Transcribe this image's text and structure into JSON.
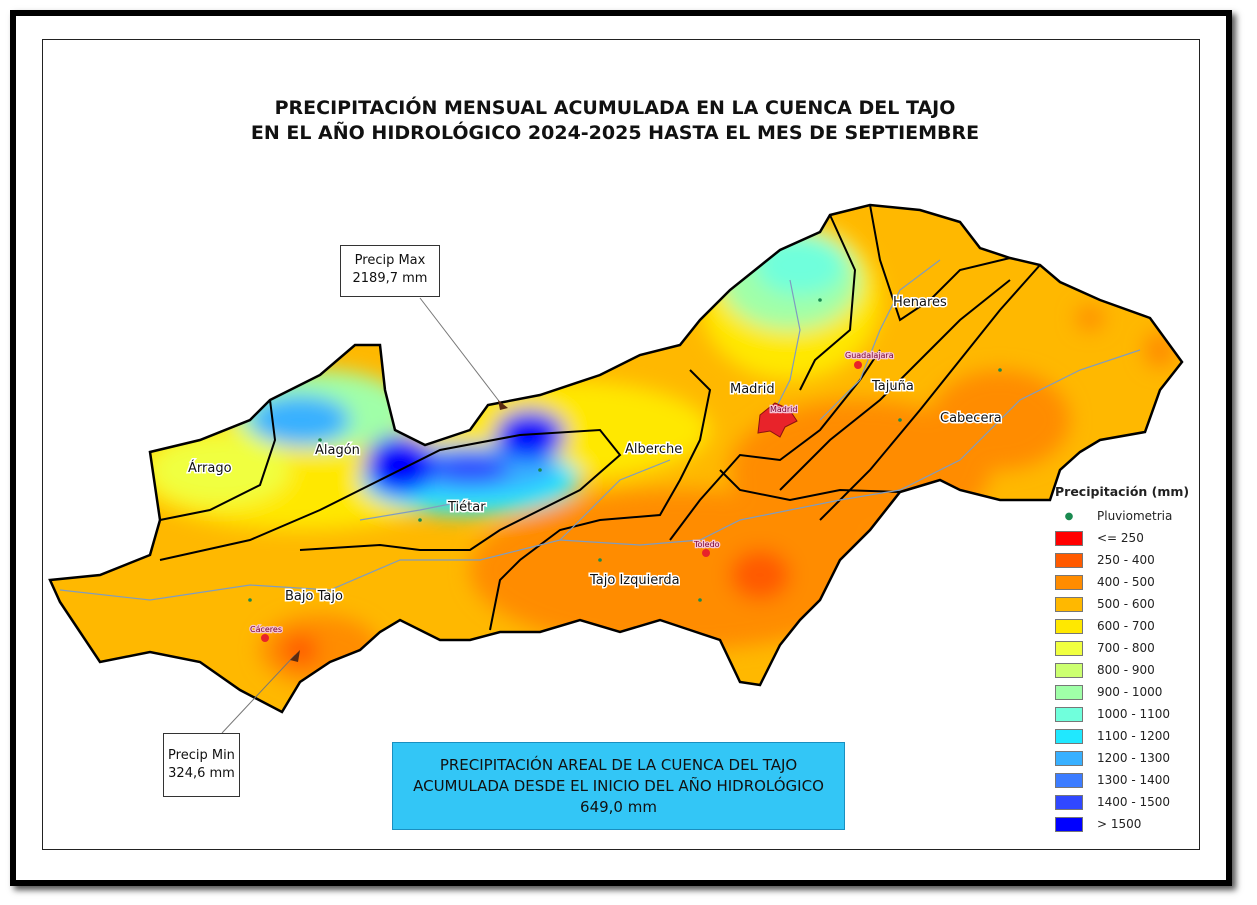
{
  "title": {
    "line1": "PRECIPITACIÓN MENSUAL ACUMULADA EN LA CUENCA DEL TAJO",
    "line2": "EN EL AÑO HIDROLÓGICO 2024-2025 HASTA EL MES DE SEPTIEMBRE"
  },
  "callouts": {
    "max": {
      "label": "Precip Max",
      "value": "2189,7 mm"
    },
    "min": {
      "label": "Precip Min",
      "value": "324,6 mm"
    }
  },
  "areal": {
    "line1": "PRECIPITACIÓN AREAL DE LA CUENCA DEL TAJO",
    "line2": "ACUMULADA DESDE EL INICIO DEL AÑO HIDROLÓGICO",
    "value": "649,0 mm"
  },
  "subbasins": [
    "Árrago",
    "Alagón",
    "Tiétar",
    "Alberche",
    "Madrid",
    "Henares",
    "Tajuña",
    "Cabecera",
    "Bajo Tajo",
    "Tajo Izquierda"
  ],
  "cities": [
    "Guadalajara",
    "Madrid",
    "Toledo",
    "Cáceres"
  ],
  "legend": {
    "title": "Precipitación (mm)",
    "station": "Pluviometria",
    "classes": [
      {
        "label": "<= 250",
        "color": "#ff0000"
      },
      {
        "label": "250 - 400",
        "color": "#ff5a00"
      },
      {
        "label": "400 - 500",
        "color": "#ff8c00"
      },
      {
        "label": "500 - 600",
        "color": "#ffb800"
      },
      {
        "label": "600 - 700",
        "color": "#ffe800"
      },
      {
        "label": "700 - 800",
        "color": "#f0ff40"
      },
      {
        "label": "800 - 900",
        "color": "#ccff70"
      },
      {
        "label": "900 - 1000",
        "color": "#a0ffa8"
      },
      {
        "label": "1000 - 1100",
        "color": "#70ffdc"
      },
      {
        "label": "1100 - 1200",
        "color": "#20e8ff"
      },
      {
        "label": "1200 - 1300",
        "color": "#38b0ff"
      },
      {
        "label": "1300 - 1400",
        "color": "#3c7cff"
      },
      {
        "label": "1400 - 1500",
        "color": "#3048ff"
      },
      {
        "label": "> 1500",
        "color": "#0000ff"
      }
    ]
  }
}
